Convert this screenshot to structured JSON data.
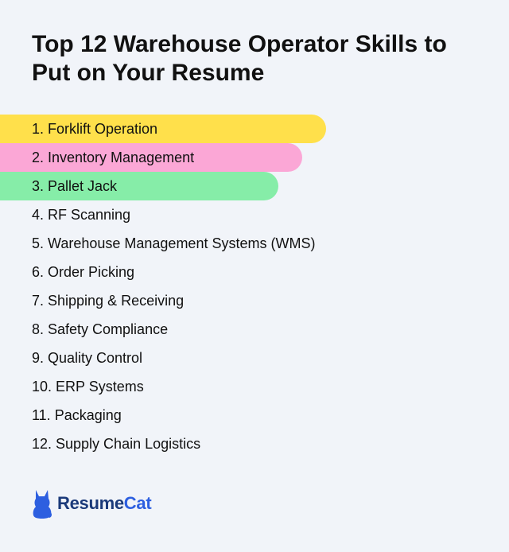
{
  "title": "Top 12 Warehouse Operator Skills to Put on Your Resume",
  "skills": [
    {
      "label": "1. Forklift Operation",
      "highlight": "#ffe04b"
    },
    {
      "label": "2. Inventory Management",
      "highlight": "#fba7d6"
    },
    {
      "label": "3. Pallet Jack",
      "highlight": "#86eda8"
    },
    {
      "label": "4. RF Scanning"
    },
    {
      "label": "5. Warehouse Management Systems (WMS)"
    },
    {
      "label": "6. Order Picking"
    },
    {
      "label": "7. Shipping & Receiving"
    },
    {
      "label": "8. Safety Compliance"
    },
    {
      "label": "9. Quality Control"
    },
    {
      "label": "10. ERP Systems"
    },
    {
      "label": "11. Packaging"
    },
    {
      "label": "12. Supply Chain Logistics"
    }
  ],
  "logo": {
    "text_part1": "Resume",
    "text_part2": "Cat",
    "icon": "cat-icon",
    "color": "#2d5fe0"
  }
}
